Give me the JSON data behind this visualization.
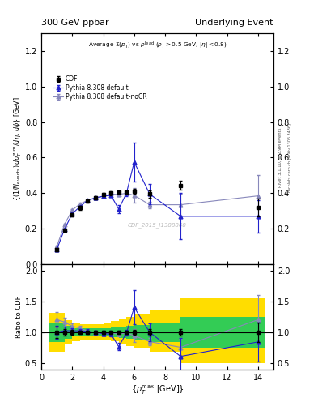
{
  "title_left": "300 GeV ppbar",
  "title_right": "Underlying Event",
  "watermark": "CDF_2015_I1388868",
  "rivet_label": "Rivet 3.1.10, ≥ 2.9M events",
  "mcplots_label": "mcplots.cern.ch [arXiv:1306.3436]",
  "ylabel_ratio": "Ratio to CDF",
  "cdf_x": [
    1.0,
    1.5,
    2.0,
    2.5,
    3.0,
    3.5,
    4.0,
    4.5,
    5.0,
    5.5,
    6.0,
    7.0,
    9.0,
    14.0
  ],
  "cdf_y": [
    0.083,
    0.193,
    0.278,
    0.318,
    0.355,
    0.375,
    0.392,
    0.4,
    0.405,
    0.405,
    0.41,
    0.395,
    0.443,
    0.32
  ],
  "cdf_yerr": [
    0.008,
    0.01,
    0.01,
    0.01,
    0.01,
    0.01,
    0.01,
    0.01,
    0.01,
    0.01,
    0.015,
    0.02,
    0.025,
    0.05
  ],
  "py_x": [
    1.0,
    1.5,
    2.0,
    2.5,
    3.0,
    3.5,
    4.0,
    4.5,
    5.0,
    5.5,
    6.0,
    7.0,
    9.0,
    14.0
  ],
  "py_y": [
    0.083,
    0.198,
    0.285,
    0.325,
    0.36,
    0.375,
    0.383,
    0.388,
    0.31,
    0.4,
    0.575,
    0.395,
    0.27,
    0.27
  ],
  "py_yerr": [
    0.003,
    0.005,
    0.005,
    0.005,
    0.005,
    0.006,
    0.007,
    0.008,
    0.022,
    0.015,
    0.11,
    0.055,
    0.13,
    0.09
  ],
  "nocr_x": [
    1.0,
    1.5,
    2.0,
    2.5,
    3.0,
    3.5,
    4.0,
    4.5,
    5.0,
    5.5,
    6.0,
    7.0,
    9.0,
    14.0
  ],
  "nocr_y": [
    0.1,
    0.225,
    0.305,
    0.34,
    0.36,
    0.372,
    0.382,
    0.395,
    0.393,
    0.4,
    0.388,
    0.335,
    0.335,
    0.385
  ],
  "nocr_yerr": [
    0.003,
    0.005,
    0.005,
    0.005,
    0.005,
    0.005,
    0.007,
    0.007,
    0.009,
    0.009,
    0.04,
    0.018,
    0.06,
    0.115
  ],
  "ylim_main": [
    0.0,
    1.3
  ],
  "ylim_ratio": [
    0.4,
    2.1
  ],
  "xlim": [
    0,
    15
  ],
  "yellow_band_edges": [
    0.5,
    1.5,
    2.0,
    2.5,
    3.0,
    3.5,
    4.0,
    4.5,
    5.0,
    5.5,
    6.0,
    7.0,
    9.0,
    14.5
  ],
  "yellow_band_lo": [
    0.68,
    0.8,
    0.86,
    0.87,
    0.87,
    0.87,
    0.87,
    0.85,
    0.82,
    0.78,
    0.75,
    0.68,
    0.5,
    0.5
  ],
  "yellow_band_hi": [
    1.32,
    1.2,
    1.14,
    1.13,
    1.13,
    1.13,
    1.15,
    1.18,
    1.22,
    1.25,
    1.3,
    1.35,
    1.55,
    1.55
  ],
  "green_band_edges": [
    0.5,
    1.5,
    2.0,
    2.5,
    3.0,
    3.5,
    4.0,
    4.5,
    5.0,
    5.5,
    6.0,
    7.0,
    9.0,
    14.5
  ],
  "green_band_lo": [
    0.84,
    0.9,
    0.93,
    0.94,
    0.94,
    0.94,
    0.93,
    0.92,
    0.91,
    0.89,
    0.88,
    0.84,
    0.75,
    0.75
  ],
  "green_band_hi": [
    1.16,
    1.1,
    1.07,
    1.06,
    1.06,
    1.06,
    1.07,
    1.08,
    1.09,
    1.11,
    1.12,
    1.16,
    1.25,
    1.25
  ],
  "color_cdf": "#000000",
  "color_py": "#2222cc",
  "color_nocr": "#8888bb",
  "color_green": "#33cc55",
  "color_yellow": "#ffdd00",
  "main_yticks": [
    0.0,
    0.2,
    0.4,
    0.6,
    0.8,
    1.0,
    1.2
  ],
  "ratio_yticks": [
    0.5,
    1.0,
    1.5,
    2.0
  ]
}
